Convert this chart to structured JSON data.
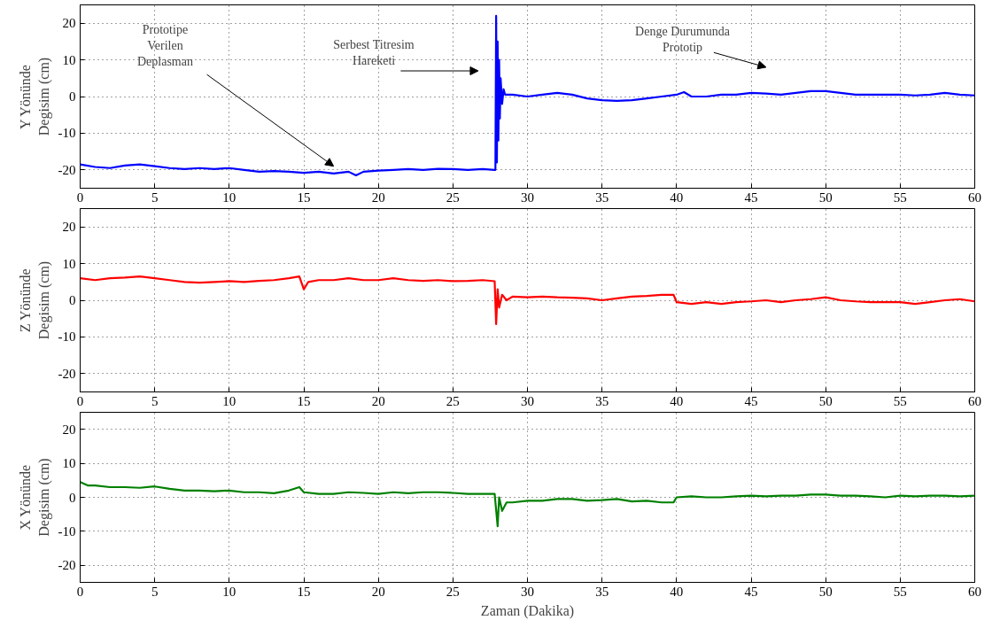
{
  "chart_data": [
    {
      "type": "line",
      "ylabel": "Y Yönünde\nDegisim (cm)",
      "xlim": [
        0,
        60
      ],
      "ylim": [
        -25,
        25
      ],
      "xticks": [
        0,
        5,
        10,
        15,
        20,
        25,
        30,
        35,
        40,
        45,
        50,
        55,
        60
      ],
      "yticks": [
        -20,
        -10,
        0,
        10,
        20
      ],
      "grid": true,
      "annotations": [
        "Prototipe\nVerilen\nDeplasman",
        "Serbest Titresim\nHareketi",
        "Denge Durumunda\nPrototip"
      ],
      "series": [
        {
          "color": "#0000ff",
          "x": [
            0,
            1,
            2,
            3,
            4,
            5,
            6,
            7,
            8,
            9,
            10,
            11,
            12,
            13,
            14,
            15,
            16,
            17,
            18,
            18.5,
            19,
            20,
            21,
            22,
            23,
            24,
            25,
            26,
            27,
            27.8,
            27.85,
            27.9,
            27.95,
            28.0,
            28.05,
            28.1,
            28.15,
            28.2,
            28.3,
            28.4,
            28.5,
            29,
            30,
            31,
            32,
            33,
            34,
            35,
            36,
            37,
            38,
            39,
            40,
            40.5,
            41,
            42,
            43,
            44,
            45,
            46,
            47,
            48,
            49,
            50,
            51,
            52,
            53,
            54,
            55,
            56,
            57,
            58,
            59,
            60
          ],
          "values": [
            -18.5,
            -19.2,
            -19.5,
            -18.8,
            -18.5,
            -19,
            -19.5,
            -19.8,
            -19.5,
            -19.8,
            -19.5,
            -20,
            -20.5,
            -20.3,
            -20.5,
            -20.8,
            -20.5,
            -21,
            -20.5,
            -21.5,
            -20.5,
            -20.2,
            -20,
            -19.8,
            -20,
            -19.7,
            -19.8,
            -20,
            -19.8,
            -20,
            -20,
            22,
            -18,
            15,
            -12,
            10,
            -6,
            5,
            -2,
            2,
            0.5,
            0.5,
            0,
            0.5,
            1,
            0.5,
            -0.5,
            -1,
            -1.2,
            -1,
            -0.5,
            0,
            0.5,
            1.2,
            0,
            0,
            0.5,
            0.5,
            1,
            0.8,
            0.5,
            1,
            1.5,
            1.5,
            1,
            0.5,
            0.5,
            0.5,
            0.5,
            0.3,
            0.5,
            1,
            0.5,
            0.3
          ]
        }
      ]
    },
    {
      "type": "line",
      "ylabel": "Z Yönünde\nDegisim (cm)",
      "xlim": [
        0,
        60
      ],
      "ylim": [
        -25,
        25
      ],
      "xticks": [
        0,
        5,
        10,
        15,
        20,
        25,
        30,
        35,
        40,
        45,
        50,
        55,
        60
      ],
      "yticks": [
        -20,
        -10,
        0,
        10,
        20
      ],
      "grid": true,
      "series": [
        {
          "color": "#ff0000",
          "x": [
            0,
            1,
            2,
            3,
            4,
            5,
            6,
            7,
            8,
            9,
            10,
            11,
            12,
            13,
            14,
            14.7,
            15,
            15.3,
            16,
            17,
            18,
            19,
            20,
            21,
            22,
            23,
            24,
            25,
            26,
            27,
            27.8,
            27.9,
            28.0,
            28.1,
            28.3,
            28.6,
            29,
            30,
            31,
            32,
            33,
            34,
            35,
            36,
            37,
            38,
            39,
            39.8,
            40,
            41,
            42,
            43,
            44,
            45,
            46,
            47,
            48,
            49,
            50,
            51,
            52,
            53,
            54,
            55,
            56,
            57,
            58,
            59,
            60
          ],
          "values": [
            6,
            5.5,
            6,
            6.2,
            6.5,
            6,
            5.5,
            5,
            4.8,
            5,
            5.2,
            5,
            5.3,
            5.5,
            6,
            6.5,
            3,
            5,
            5.5,
            5.5,
            6,
            5.5,
            5.5,
            6,
            5.5,
            5.3,
            5.5,
            5.2,
            5.3,
            5.5,
            5.2,
            -6.5,
            3,
            -2,
            1.5,
            0,
            1,
            0.8,
            1,
            0.8,
            0.7,
            0.5,
            0,
            0.5,
            1,
            1.2,
            1.5,
            1.5,
            -0.5,
            -1,
            -0.5,
            -1,
            -0.5,
            -0.3,
            0,
            -0.5,
            0,
            0.3,
            0.8,
            0,
            -0.3,
            -0.5,
            -0.5,
            -0.5,
            -1,
            -0.5,
            0,
            0.3,
            -0.3
          ]
        }
      ]
    },
    {
      "type": "line",
      "ylabel": "X Yönünde\nDegisim (cm)",
      "xlabel": "Zaman (Dakika)",
      "xlim": [
        0,
        60
      ],
      "ylim": [
        -25,
        25
      ],
      "xticks": [
        0,
        5,
        10,
        15,
        20,
        25,
        30,
        35,
        40,
        45,
        50,
        55,
        60
      ],
      "yticks": [
        -20,
        -10,
        0,
        10,
        20
      ],
      "grid": true,
      "series": [
        {
          "color": "#008000",
          "x": [
            0,
            0.5,
            1,
            2,
            3,
            4,
            5,
            6,
            7,
            8,
            9,
            10,
            11,
            12,
            13,
            14,
            14.7,
            15,
            16,
            17,
            18,
            19,
            20,
            21,
            22,
            23,
            24,
            25,
            26,
            27,
            27.8,
            28.0,
            28.1,
            28.3,
            28.6,
            29,
            30,
            31,
            32,
            33,
            34,
            35,
            36,
            37,
            38,
            39,
            39.8,
            40,
            41,
            42,
            43,
            44,
            45,
            46,
            47,
            48,
            49,
            50,
            51,
            52,
            53,
            54,
            55,
            56,
            57,
            58,
            59,
            60
          ],
          "values": [
            4.5,
            3.5,
            3.5,
            3,
            3,
            2.8,
            3.2,
            2.5,
            2,
            2,
            1.8,
            2,
            1.5,
            1.5,
            1.2,
            2,
            3,
            1.5,
            1,
            1,
            1.5,
            1.3,
            1,
            1.5,
            1.2,
            1.5,
            1.5,
            1.3,
            1,
            1,
            1,
            -8.5,
            0,
            -4,
            -1.5,
            -1.5,
            -1,
            -1,
            -0.5,
            -0.5,
            -1,
            -0.8,
            -0.5,
            -1.2,
            -1,
            -1.5,
            -1.5,
            0,
            0.3,
            0,
            0,
            0.3,
            0.5,
            0.3,
            0.5,
            0.5,
            0.8,
            0.8,
            0.5,
            0.5,
            0.3,
            0,
            0.5,
            0.3,
            0.5,
            0.5,
            0.3,
            0.5
          ]
        }
      ]
    }
  ]
}
